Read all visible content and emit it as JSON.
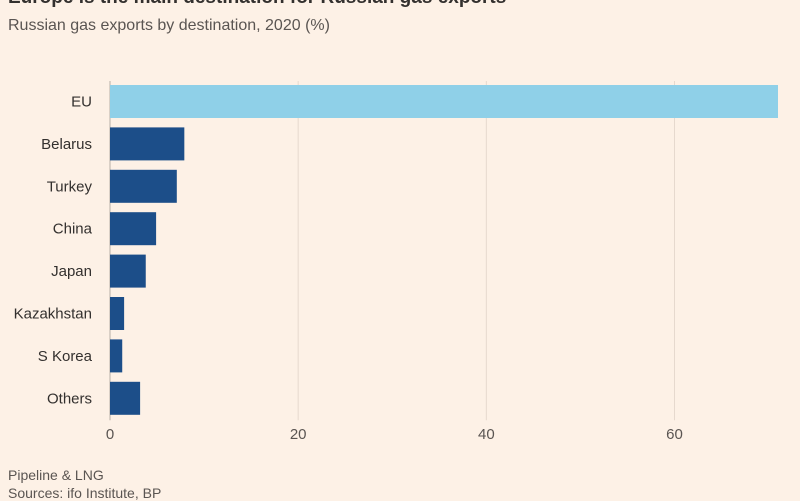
{
  "header": {
    "title": "Europe is the main destination for Russian gas exports",
    "subtitle": "Russian gas exports by destination, 2020 (%)"
  },
  "footer": {
    "note": "Pipeline & LNG",
    "source": "Sources: ifo Institute, BP"
  },
  "colors": {
    "highlight": "#8fd0e8",
    "bar": "#1c4e89",
    "grid": "#e6d9ce",
    "axis": "#b8aea6"
  },
  "chart_data": {
    "type": "bar",
    "orientation": "horizontal",
    "categories": [
      "EU",
      "Belarus",
      "Turkey",
      "China",
      "Japan",
      "Kazakhstan",
      "S Korea",
      "Others"
    ],
    "values": [
      71,
      7.9,
      7.1,
      4.9,
      3.8,
      1.5,
      1.3,
      3.2
    ],
    "highlighted": [
      "EU"
    ],
    "xticks": [
      0,
      20,
      40,
      60
    ],
    "xlim": [
      0,
      71
    ],
    "grid": true
  }
}
